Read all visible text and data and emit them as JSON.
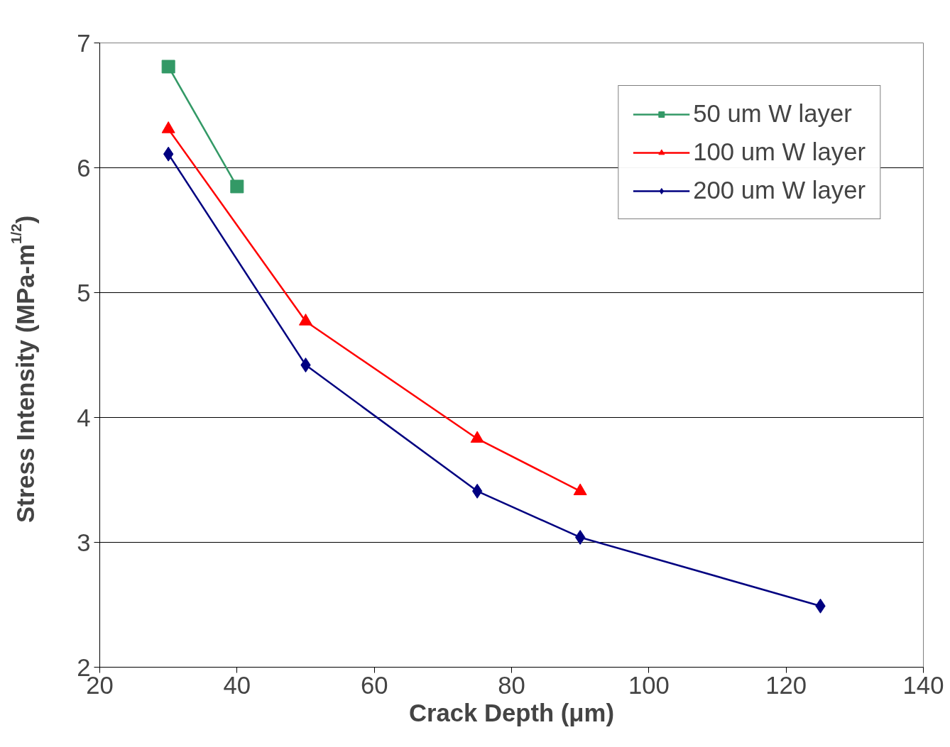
{
  "chart_data": {
    "type": "line",
    "xlabel": "Crack Depth (μm)",
    "ylabel": "Stress Intensity (MPa-m$^{1/2}$)",
    "xlim": [
      20,
      140
    ],
    "xticks": [
      20,
      40,
      60,
      80,
      100,
      120,
      140
    ],
    "ylim": [
      2,
      7
    ],
    "yticks": [
      2,
      3,
      4,
      5,
      6,
      7
    ],
    "grid": "y",
    "legend": "top right",
    "line_style": "solid",
    "series": [
      {
        "name": "50 um W layer",
        "color": "#339966",
        "marker": "square",
        "x": [
          30,
          40
        ],
        "values": [
          6.81,
          5.85
        ]
      },
      {
        "name": "100 um W layer",
        "color": "#ff0000",
        "marker": "triangle",
        "x": [
          30,
          50,
          75,
          90
        ],
        "values": [
          6.31,
          4.77,
          3.83,
          3.41
        ]
      },
      {
        "name": "200 um W layer",
        "color": "#000080",
        "marker": "diamond",
        "x": [
          30,
          50,
          75,
          90,
          125
        ],
        "values": [
          6.11,
          4.42,
          3.41,
          3.04,
          2.49
        ]
      }
    ]
  }
}
